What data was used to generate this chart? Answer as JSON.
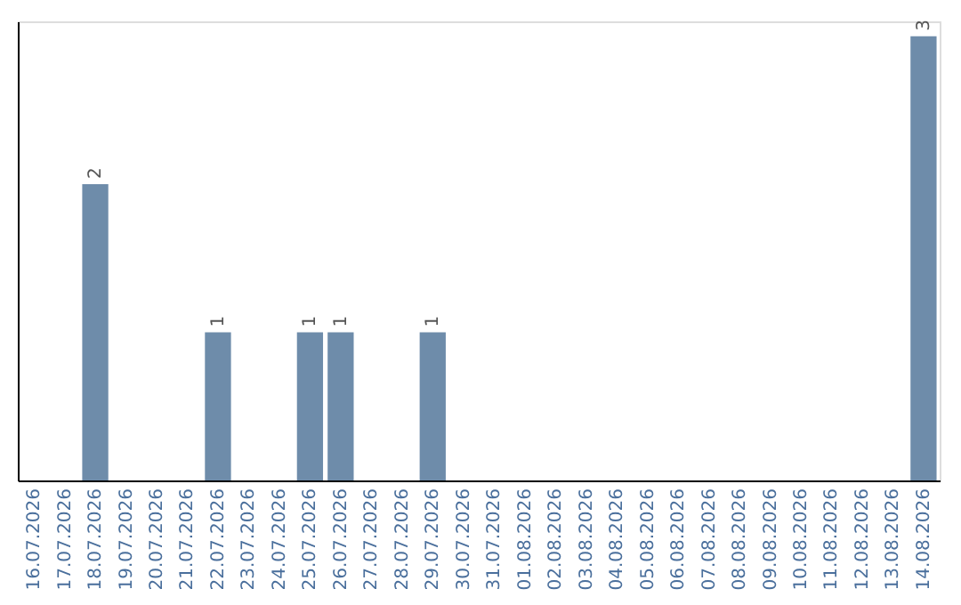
{
  "chart_data": {
    "type": "bar",
    "categories": [
      "16.07.2026",
      "17.07.2026",
      "18.07.2026",
      "19.07.2026",
      "20.07.2026",
      "21.07.2026",
      "22.07.2026",
      "23.07.2026",
      "24.07.2026",
      "25.07.2026",
      "26.07.2026",
      "27.07.2026",
      "28.07.2026",
      "29.07.2026",
      "30.07.2026",
      "31.07.2026",
      "01.08.2026",
      "02.08.2026",
      "03.08.2026",
      "04.08.2026",
      "05.08.2026",
      "06.08.2026",
      "07.08.2026",
      "08.08.2026",
      "09.08.2026",
      "10.08.2026",
      "11.08.2026",
      "12.08.2026",
      "13.08.2026",
      "14.08.2026"
    ],
    "values": [
      0,
      0,
      2,
      0,
      0,
      0,
      1,
      0,
      0,
      1,
      1,
      0,
      0,
      1,
      0,
      0,
      0,
      0,
      0,
      0,
      0,
      0,
      0,
      0,
      0,
      0,
      0,
      0,
      0,
      3
    ],
    "value_labels": [
      null,
      null,
      "2",
      null,
      null,
      null,
      "1",
      null,
      null,
      "1",
      "1",
      null,
      null,
      "1",
      null,
      null,
      null,
      null,
      null,
      null,
      null,
      null,
      null,
      null,
      null,
      null,
      null,
      null,
      null,
      "3"
    ],
    "color": "#6e8caa",
    "ylim": [
      0,
      3.1
    ],
    "tick_labels": "x",
    "grid": false
  }
}
